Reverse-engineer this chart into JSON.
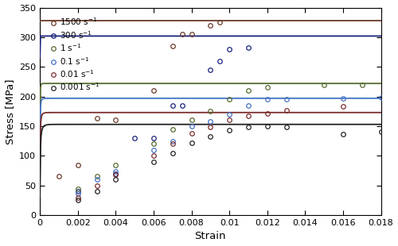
{
  "title": "",
  "xlabel": "Strain",
  "ylabel": "Stress [MPa]",
  "xlim": [
    0,
    0.018
  ],
  "ylim": [
    0,
    350
  ],
  "xticks": [
    0,
    0.002,
    0.004,
    0.006,
    0.008,
    0.01,
    0.012,
    0.014,
    0.016,
    0.018
  ],
  "yticks": [
    0,
    50,
    100,
    150,
    200,
    250,
    300,
    350
  ],
  "series": [
    {
      "label": "1500 s$^{-1}$",
      "color": "#6B3A2A",
      "plateau": 328,
      "k": 1200,
      "n": 0.38,
      "data_x": [
        0.001,
        0.002,
        0.003,
        0.004,
        0.006,
        0.007,
        0.0075,
        0.008,
        0.009,
        0.0095
      ],
      "data_y": [
        65,
        85,
        163,
        160,
        210,
        285,
        305,
        305,
        320,
        325
      ]
    },
    {
      "label": "300 s$^{-1}$",
      "color": "#1A237E",
      "plateau": 302,
      "k": 700,
      "n": 0.42,
      "data_x": [
        0.002,
        0.004,
        0.005,
        0.006,
        0.007,
        0.0075,
        0.009,
        0.0095,
        0.01,
        0.011
      ],
      "data_y": [
        40,
        70,
        130,
        130,
        185,
        185,
        245,
        260,
        280,
        283
      ]
    },
    {
      "label": "1 s$^{-1}$",
      "color": "#556B2F",
      "plateau": 222,
      "k": 500,
      "n": 0.48,
      "data_x": [
        0.002,
        0.003,
        0.004,
        0.006,
        0.007,
        0.008,
        0.009,
        0.01,
        0.011,
        0.012,
        0.015,
        0.017
      ],
      "data_y": [
        44,
        65,
        85,
        120,
        145,
        160,
        175,
        195,
        210,
        215,
        220,
        220
      ]
    },
    {
      "label": "0.1 s$^{-1}$",
      "color": "#4472C4",
      "plateau": 197,
      "k": 450,
      "n": 0.5,
      "data_x": [
        0.002,
        0.003,
        0.004,
        0.006,
        0.007,
        0.008,
        0.009,
        0.01,
        0.011,
        0.012,
        0.013,
        0.016,
        0.018
      ],
      "data_y": [
        36,
        60,
        73,
        110,
        125,
        150,
        158,
        170,
        185,
        195,
        195,
        197,
        198
      ]
    },
    {
      "label": "0.01 s$^{-1}$",
      "color": "#7B2D2D",
      "plateau": 173,
      "k": 420,
      "n": 0.52,
      "data_x": [
        0.002,
        0.003,
        0.004,
        0.006,
        0.007,
        0.008,
        0.009,
        0.01,
        0.011,
        0.012,
        0.013,
        0.016
      ],
      "data_y": [
        30,
        50,
        68,
        100,
        120,
        138,
        148,
        160,
        168,
        172,
        177,
        183
      ]
    },
    {
      "label": "0.001 s$^{-1}$",
      "color": "#222222",
      "plateau": 153,
      "k": 380,
      "n": 0.54,
      "data_x": [
        0.002,
        0.003,
        0.004,
        0.006,
        0.007,
        0.008,
        0.009,
        0.01,
        0.011,
        0.012,
        0.013,
        0.016,
        0.018
      ],
      "data_y": [
        25,
        40,
        60,
        90,
        105,
        122,
        132,
        143,
        148,
        150,
        148,
        136,
        140
      ]
    }
  ],
  "background_color": "#FFFFFF",
  "fig_width": 5.0,
  "fig_height": 3.1,
  "dpi": 100
}
